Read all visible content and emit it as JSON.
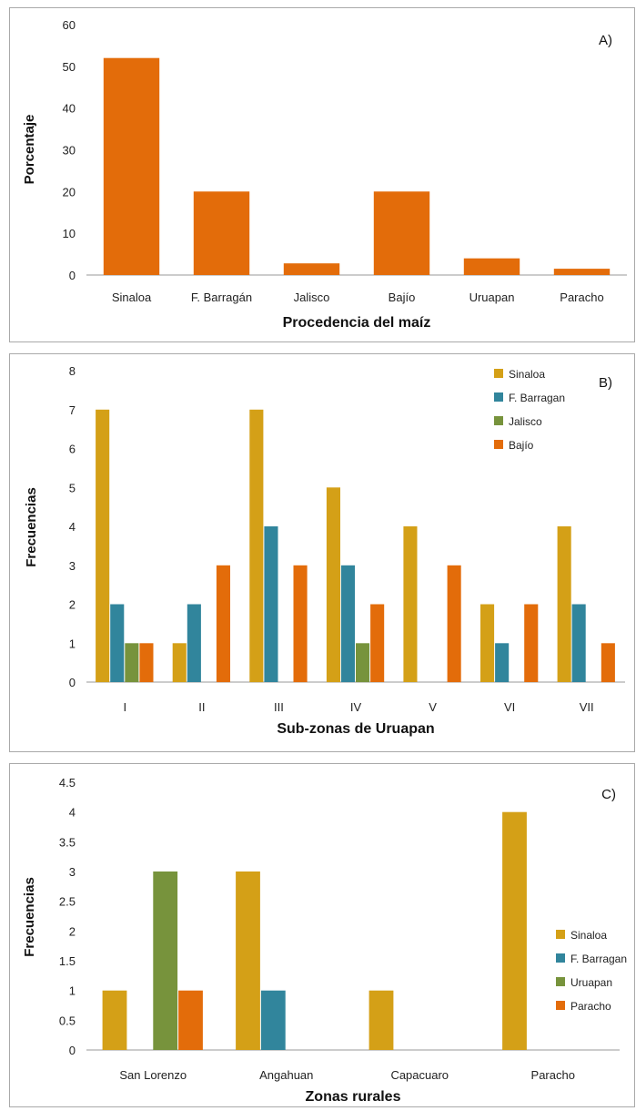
{
  "chart_data": [
    {
      "type": "bar",
      "panel_label": "A)",
      "xlabel": "Procedencia del maíz",
      "ylabel": "Porcentaje",
      "categories": [
        "Sinaloa",
        "F. Barragán",
        "Jalisco",
        "Bajío",
        "Uruapan",
        "Paracho"
      ],
      "series": [
        {
          "values": [
            52,
            20,
            2.8,
            20,
            4,
            1.5
          ],
          "color": "#e36c0a"
        }
      ],
      "ylim": [
        0,
        60
      ],
      "yticks": [
        "0",
        "10",
        "20",
        "30",
        "40",
        "50",
        "60"
      ],
      "grid": false
    },
    {
      "type": "bar",
      "panel_label": "B)",
      "xlabel": "Sub-zonas de Uruapan",
      "ylabel": "Frecuencias",
      "categories": [
        "I",
        "II",
        "III",
        "IV",
        "V",
        "VI",
        "VII"
      ],
      "series": [
        {
          "name": "Sinaloa",
          "values": [
            7,
            1,
            7,
            5,
            4,
            2,
            4
          ],
          "color": "#d4a017"
        },
        {
          "name": "F. Barragan",
          "values": [
            2,
            2,
            4,
            3,
            0,
            1,
            2
          ],
          "color": "#31859c"
        },
        {
          "name": "Jalisco",
          "values": [
            1,
            0,
            0,
            1,
            0,
            0,
            0
          ],
          "color": "#77933c"
        },
        {
          "name": "Bajío",
          "values": [
            1,
            3,
            3,
            2,
            3,
            2,
            1
          ],
          "color": "#e36c0a"
        }
      ],
      "ylim": [
        0,
        8
      ],
      "yticks": [
        "0",
        "1",
        "2",
        "3",
        "4",
        "5",
        "6",
        "7",
        "8"
      ],
      "legend_position": "top-right",
      "grid": false
    },
    {
      "type": "bar",
      "panel_label": "C)",
      "xlabel": "Zonas rurales",
      "ylabel": "Frecuencias",
      "categories": [
        "San Lorenzo",
        "Angahuan",
        "Capacuaro",
        "Paracho"
      ],
      "series": [
        {
          "name": "Sinaloa",
          "values": [
            1,
            3,
            1,
            4
          ],
          "color": "#d4a017"
        },
        {
          "name": "F. Barragan",
          "values": [
            0,
            1,
            0,
            0
          ],
          "color": "#31859c"
        },
        {
          "name": "Uruapan",
          "values": [
            3,
            0,
            0,
            0
          ],
          "color": "#77933c"
        },
        {
          "name": "Paracho",
          "values": [
            1,
            0,
            0,
            0
          ],
          "color": "#e36c0a"
        }
      ],
      "ylim": [
        0,
        4.5
      ],
      "yticks": [
        "0",
        "0.5",
        "1",
        "1.5",
        "2",
        "2.5",
        "3",
        "3.5",
        "4",
        "4.5"
      ],
      "legend_position": "right",
      "grid": false
    }
  ]
}
